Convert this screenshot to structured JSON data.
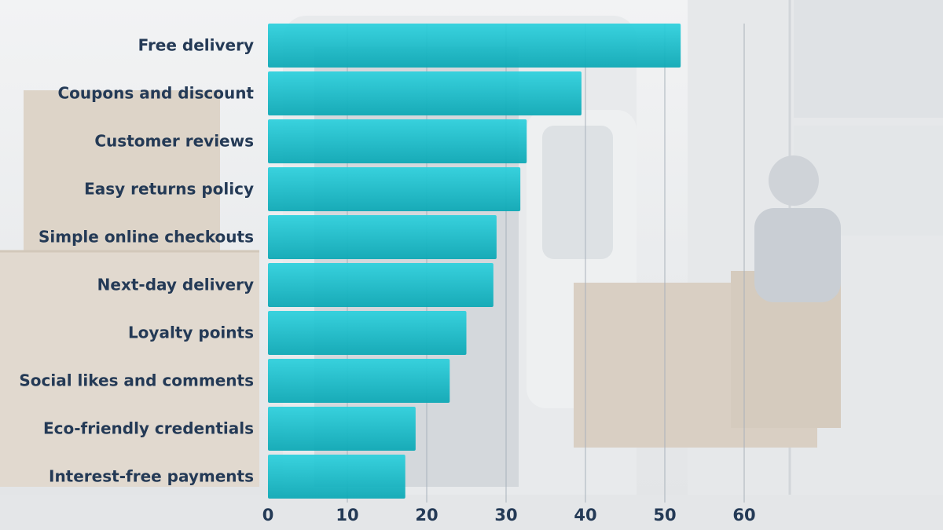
{
  "chart_data": {
    "type": "bar",
    "orientation": "horizontal",
    "categories": [
      "Free delivery",
      "Coupons and discount",
      "Customer reviews",
      "Easy returns policy",
      "Simple online checkouts",
      "Next-day delivery",
      "Loyalty points",
      "Social likes and comments",
      "Eco-friendly credentials",
      "Interest-free payments"
    ],
    "values": [
      52,
      39.5,
      32.6,
      31.8,
      28.8,
      28.4,
      25,
      22.9,
      18.6,
      17.3
    ],
    "xlim": [
      0,
      60
    ],
    "xticks": [
      "0",
      "10",
      "20",
      "30",
      "40",
      "50",
      "60"
    ],
    "grid": true,
    "colors": {
      "bar_top": "#2ad0dd",
      "bar_bottom": "#08a7b4",
      "label": "#243a56"
    }
  }
}
